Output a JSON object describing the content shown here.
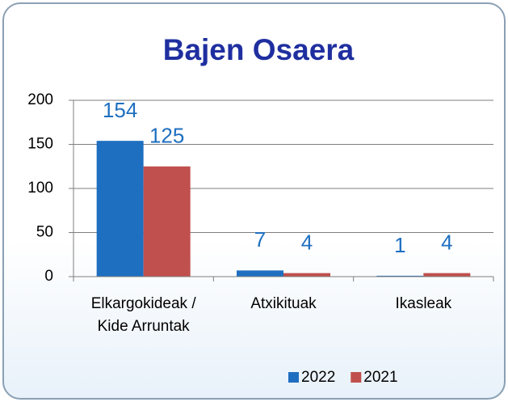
{
  "chart_data": {
    "type": "bar",
    "title": "Bajen Osaera",
    "categories": [
      "Elkargokideak / Kide Arruntak",
      "Atxikituak",
      "Ikasleak"
    ],
    "series": [
      {
        "name": "2022",
        "color": "#1f6fc0",
        "values": [
          154,
          7,
          1
        ]
      },
      {
        "name": "2021",
        "color": "#c0504d",
        "values": [
          125,
          4,
          4
        ]
      }
    ],
    "ylim": [
      0,
      200
    ],
    "yticks": [
      0,
      50,
      100,
      150,
      200
    ],
    "grid": true,
    "legend": "bottom"
  }
}
